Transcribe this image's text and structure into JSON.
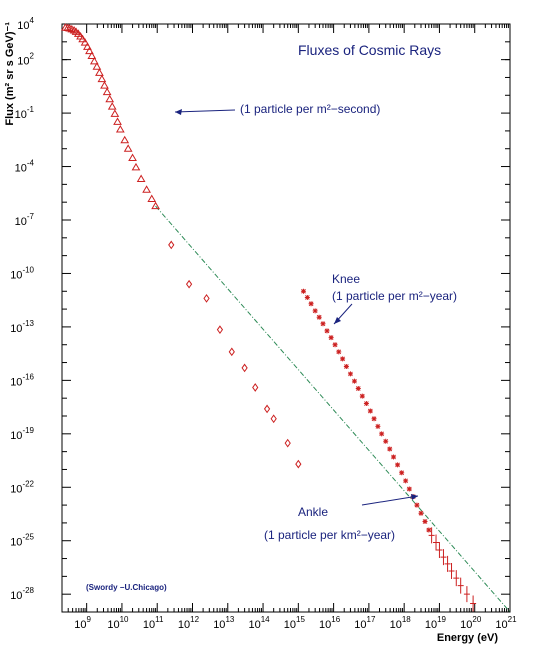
{
  "chart_data": {
    "type": "scatter",
    "title": "Fluxes of Cosmic Rays",
    "xlabel": "Energy (eV)",
    "ylabel": "Flux (m² sr s GeV)⁻¹",
    "xscale": "log",
    "yscale": "log",
    "xlim": [
      200000000,
      1e+21
    ],
    "ylim": [
      1e-29,
      10000
    ],
    "x_ticks": [
      {
        "value": 1000000000.0,
        "base": "10",
        "exp": "9"
      },
      {
        "value": 10000000000.0,
        "base": "10",
        "exp": "10"
      },
      {
        "value": 100000000000.0,
        "base": "10",
        "exp": "11"
      },
      {
        "value": 1000000000000.0,
        "base": "10",
        "exp": "12"
      },
      {
        "value": 10000000000000.0,
        "base": "10",
        "exp": "13"
      },
      {
        "value": 100000000000000.0,
        "base": "10",
        "exp": "14"
      },
      {
        "value": 1000000000000000.0,
        "base": "10",
        "exp": "15"
      },
      {
        "value": 1e+16,
        "base": "10",
        "exp": "16"
      },
      {
        "value": 1e+17,
        "base": "10",
        "exp": "17"
      },
      {
        "value": 1e+18,
        "base": "10",
        "exp": "18"
      },
      {
        "value": 1e+19,
        "base": "10",
        "exp": "19"
      },
      {
        "value": 1e+20,
        "base": "10",
        "exp": "20"
      },
      {
        "value": 1e+21,
        "base": "10",
        "exp": "21"
      }
    ],
    "y_ticks": [
      {
        "value": 10000,
        "base": "10",
        "exp": "4"
      },
      {
        "value": 100,
        "base": "10",
        "exp": "2"
      },
      {
        "value": 0.1,
        "base": "10",
        "exp": "-1"
      },
      {
        "value": 0.0001,
        "base": "10",
        "exp": "-4"
      },
      {
        "value": 1e-07,
        "base": "10",
        "exp": "-7"
      },
      {
        "value": 1e-10,
        "base": "10",
        "exp": "-10"
      },
      {
        "value": 1e-13,
        "base": "10",
        "exp": "-13"
      },
      {
        "value": 1e-16,
        "base": "10",
        "exp": "-16"
      },
      {
        "value": 1e-19,
        "base": "10",
        "exp": "-19"
      },
      {
        "value": 1e-22,
        "base": "10",
        "exp": "-22"
      },
      {
        "value": 1e-25,
        "base": "10",
        "exp": "-25"
      },
      {
        "value": 1e-28,
        "base": "10",
        "exp": "-28"
      }
    ],
    "series": [
      {
        "marker": "triangle",
        "color": "#cc2020",
        "points": [
          [
            250000000,
            6300
          ],
          [
            290000000,
            6000
          ],
          [
            330000000,
            5600
          ],
          [
            380000000,
            5000
          ],
          [
            440000000,
            4300
          ],
          [
            500000000,
            3600
          ],
          [
            580000000,
            2800
          ],
          [
            670000000,
            2000
          ],
          [
            770000000,
            1400
          ],
          [
            900000000,
            900
          ],
          [
            1050000000,
            520
          ],
          [
            1200000000,
            300
          ],
          [
            1400000000,
            160
          ],
          [
            1650000000,
            80
          ],
          [
            1950000000,
            40
          ],
          [
            2300000000,
            18
          ],
          [
            2700000000,
            8
          ],
          [
            3200000000,
            3.5
          ],
          [
            3800000000,
            1.5
          ],
          [
            4500000000,
            0.6
          ],
          [
            5300000000,
            0.23
          ],
          [
            6300000000,
            0.09
          ],
          [
            7500000000,
            0.032
          ],
          [
            9000000000,
            0.012
          ],
          [
            12000000000,
            0.003
          ],
          [
            15000000000,
            0.001
          ],
          [
            20000000000,
            0.0003
          ],
          [
            25000000000,
            9e-05
          ],
          [
            35000000000,
            2e-05
          ],
          [
            50000000000,
            5e-06
          ],
          [
            70000000000,
            1.5e-06
          ],
          [
            90000000000,
            6e-07
          ]
        ]
      },
      {
        "marker": "diamond",
        "color": "#cc2020",
        "points": [
          [
            250000000000,
            4e-09
          ],
          [
            800000000000,
            2.5e-11
          ],
          [
            2500000000000,
            4e-12
          ],
          [
            6000000000000,
            7e-14
          ],
          [
            13000000000000,
            4e-15
          ],
          [
            30000000000000,
            5e-16
          ],
          [
            60000000000000,
            4e-17
          ],
          [
            130000000000000,
            2.5e-18
          ],
          [
            200000000000000,
            7e-19
          ],
          [
            500000000000000,
            3e-20
          ],
          [
            1000000000000000,
            2e-21
          ]
        ]
      },
      {
        "marker": "star",
        "color": "#cc2020",
        "points": [
          [
            1400000000000000,
            1e-11
          ],
          [
            1800000000000000,
            4.5e-12
          ],
          [
            2300000000000000,
            2e-12
          ],
          [
            3000000000000000,
            8e-13
          ],
          [
            3900000000000000,
            3.5e-13
          ],
          [
            5000000000000000,
            1.5e-13
          ],
          [
            6500000000000000,
            6e-14
          ],
          [
            8500000000000000,
            2.5e-14
          ],
          [
            11000000000000000,
            1e-14
          ],
          [
            14000000000000000,
            4e-15
          ],
          [
            18000000000000000,
            1.6e-15
          ],
          [
            23000000000000000,
            6e-16
          ],
          [
            30000000000000000,
            2.3e-16
          ],
          [
            39000000000000000,
            9e-17
          ],
          [
            50000000000000000,
            3.5e-17
          ],
          [
            65000000000000000,
            1.3e-17
          ],
          [
            85000000000000000,
            5e-18
          ],
          [
            110000000000000000,
            1.9e-18
          ],
          [
            140000000000000000,
            7e-19
          ],
          [
            180000000000000000,
            2.6e-19
          ],
          [
            230000000000000000,
            1e-19
          ],
          [
            300000000000000000,
            3.8e-20
          ],
          [
            390000000000000000,
            1.4e-20
          ],
          [
            500000000000000000,
            5e-21
          ],
          [
            650000000000000000,
            1.8e-21
          ],
          [
            850000000000000000,
            6.5e-22
          ],
          [
            1100000000000000000,
            2.3e-22
          ],
          [
            1400000000000000000,
            8e-23
          ],
          [
            1800000000000000000,
            3e-23
          ],
          [
            2300000000000000000,
            1e-23
          ],
          [
            3000000000000000000,
            3.5e-24
          ],
          [
            3900000000000000000,
            1.2e-24
          ],
          [
            5000000000000000000,
            4e-25
          ]
        ]
      },
      {
        "marker": "cross",
        "color": "#cc2020",
        "points": [
          [
            6000000000000000000,
            2e-25
          ],
          [
            8000000000000000000,
            8e-26
          ],
          [
            10000000000000000000,
            3e-26
          ],
          [
            13000000000000000000,
            1.2e-26
          ],
          [
            17000000000000000000,
            5e-27
          ],
          [
            22000000000000000000,
            2e-27
          ],
          [
            30000000000000000000,
            8e-28
          ],
          [
            40000000000000000000,
            3e-28
          ],
          [
            60000000000000000000,
            1e-28
          ],
          [
            90000000000000000000,
            3e-29
          ]
        ]
      }
    ],
    "reference_line": {
      "style": "dash-dot",
      "color": "#2e8b57",
      "points": [
        [
          90000000000,
          6e-07
        ],
        [
          1e+21,
          5.4e-30
        ]
      ]
    },
    "annotations": [
      {
        "text": "(1 particle per m²−second)",
        "at": [
          1000000000000.0,
          1
        ]
      },
      {
        "text": "Knee",
        "at": [
          2e+17,
          3e-11
        ]
      },
      {
        "text": "(1 particle per m²−year)",
        "at": [
          2e+17,
          3e-12
        ]
      },
      {
        "text": "Ankle",
        "at": [
          5e+17,
          3e-24
        ]
      },
      {
        "text": "(1 particle per km²−year)",
        "at": [
          2e+17,
          1e-25
        ]
      },
      {
        "text": "(Swordy −U.Chicago)",
        "at": [
          300000000.0,
          1e-28
        ]
      }
    ]
  }
}
